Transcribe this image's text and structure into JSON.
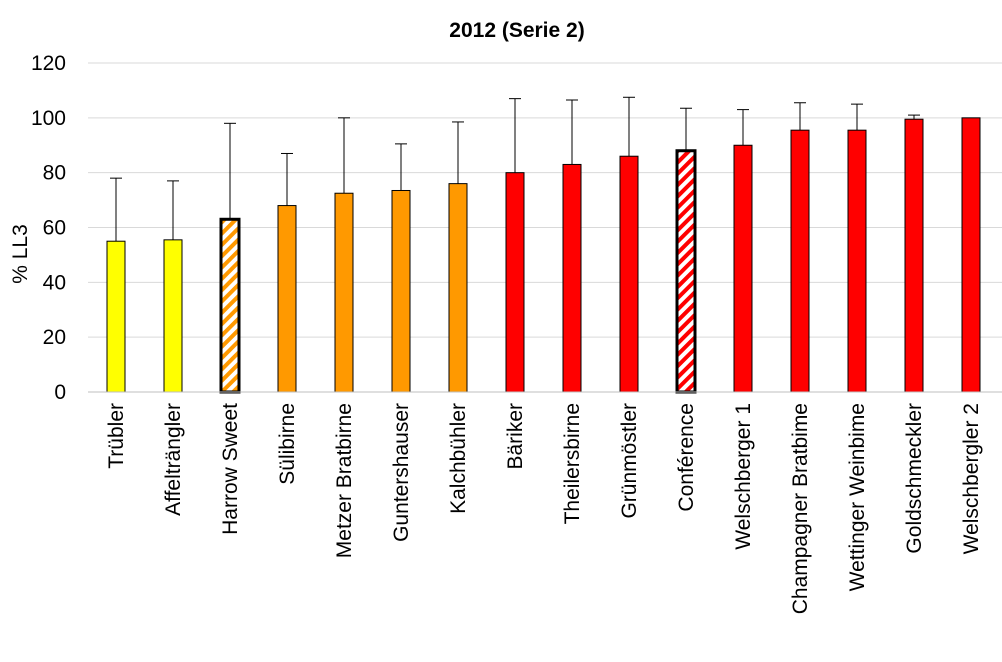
{
  "chart_data": {
    "type": "bar",
    "title": "2012 (Serie 2)",
    "ylabel": "% LL3",
    "xlabel": "",
    "ylim": [
      0,
      120
    ],
    "yticks": [
      0,
      20,
      40,
      60,
      80,
      100,
      120
    ],
    "grid": true,
    "legend": "none",
    "categories": [
      "Trübler",
      "Affelträngler",
      "Harrow Sweet",
      "Sülibirne",
      "Metzer Bratbirne",
      "Guntershauser",
      "Kalchbühler",
      "Bäriker",
      "Theilersbirne",
      "Grünmöstler",
      "Conférence",
      "Welschberger 1",
      "Champagner Bratbime",
      "Wettinger Weinbime",
      "Goldschmeckler",
      "Welschbergler 2"
    ],
    "values": [
      55,
      55.5,
      63,
      68,
      72.5,
      73.5,
      76,
      80,
      83,
      86,
      88,
      90,
      95.5,
      95.5,
      99.5,
      100
    ],
    "error_upper": [
      78,
      77,
      98,
      87,
      100,
      90.5,
      98.5,
      107,
      106.5,
      107.5,
      103.5,
      103,
      105.5,
      105,
      101,
      100
    ],
    "colors": [
      "#ffff00",
      "#ffff00",
      "#ff9900",
      "#ff9900",
      "#ff9900",
      "#ff9900",
      "#ff9900",
      "#ff0000",
      "#ff0000",
      "#ff0000",
      "#ff0000",
      "#ff0000",
      "#ff0000",
      "#ff0000",
      "#ff0000",
      "#ff0000"
    ],
    "hatched": [
      false,
      false,
      true,
      false,
      false,
      false,
      false,
      false,
      false,
      false,
      true,
      false,
      false,
      false,
      false,
      false
    ],
    "gridline_color": "#d9d9d9"
  }
}
